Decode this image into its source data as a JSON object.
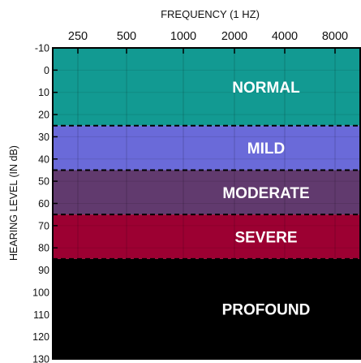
{
  "chart_data": {
    "type": "band",
    "title": "FREQUENCY (1 HZ)",
    "xlabel": "FREQUENCY (1 HZ)",
    "ylabel": "HEARING LEVEL (IN dB)",
    "x_categories": [
      "250",
      "500",
      "1000",
      "2000",
      "4000",
      "8000"
    ],
    "y_ticks": [
      -10,
      0,
      10,
      20,
      30,
      40,
      50,
      60,
      70,
      80,
      90,
      100,
      110,
      120,
      130
    ],
    "ylim": [
      -10,
      130
    ],
    "y_inverted": true,
    "bands": [
      {
        "label": "NORMAL",
        "from": -10,
        "to": 25,
        "color": "#129a92"
      },
      {
        "label": "MILD",
        "from": 25,
        "to": 45,
        "color": "#6a6ad9"
      },
      {
        "label": "MODERATE",
        "from": 45,
        "to": 65,
        "color": "#613a6e"
      },
      {
        "label": "SEVERE",
        "from": 65,
        "to": 85,
        "color": "#9c0032"
      },
      {
        "label": "PROFOUND",
        "from": 85,
        "to": 130,
        "color": "#000000"
      }
    ],
    "boundary_style": "dashed",
    "grid": true
  }
}
